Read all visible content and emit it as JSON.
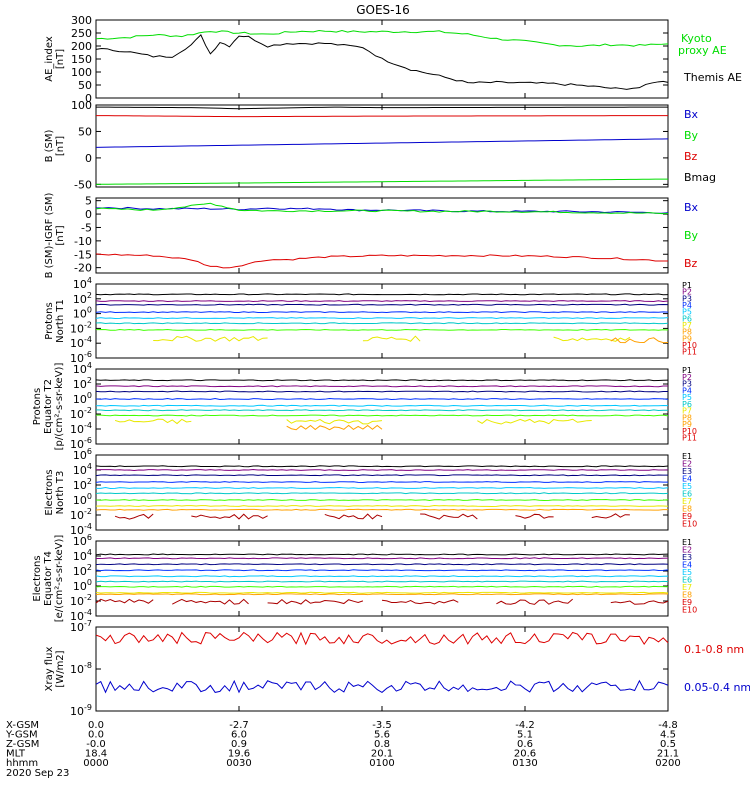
{
  "title": "GOES-16",
  "colors": {
    "black": "#000000",
    "green": "#00dd00",
    "red": "#dd0000",
    "blue": "#0000cc",
    "navy": "#000080",
    "purple": "#800080",
    "royal": "#0030ff",
    "cyan": "#00c8ff",
    "teal": "#00c8c8",
    "lime": "#40ff00",
    "yellow": "#e8e800",
    "orange": "#ffa000",
    "darkred": "#aa0000"
  },
  "chart_data": [
    {
      "type": "line",
      "ylabel": "AE_index [nT]",
      "ylim": [
        0,
        300
      ],
      "yticks": [
        "0",
        "50",
        "100",
        "150",
        "200",
        "250",
        "300"
      ],
      "legend": [
        "Kyoto proxy AE",
        "Themis AE"
      ],
      "series": [
        {
          "name": "Kyoto proxy AE",
          "color": "green",
          "x": [
            0,
            3,
            6,
            9,
            12,
            15,
            18,
            21,
            24,
            27,
            30,
            33,
            36,
            39,
            42,
            45,
            48,
            51,
            54,
            57,
            60
          ],
          "values": [
            228,
            232,
            243,
            238,
            258,
            250,
            245,
            256,
            258,
            255,
            255,
            255,
            255,
            245,
            228,
            218,
            205,
            200,
            205,
            202,
            208
          ]
        },
        {
          "name": "Themis AE",
          "color": "black",
          "x": [
            0,
            3,
            6,
            8,
            10,
            11,
            12,
            13,
            14,
            15,
            16,
            18,
            20,
            24,
            28,
            30,
            33,
            36,
            39,
            42,
            45,
            48,
            51,
            54,
            55,
            57,
            59,
            60
          ],
          "values": [
            190,
            180,
            160,
            160,
            205,
            240,
            170,
            215,
            200,
            240,
            235,
            200,
            210,
            210,
            195,
            150,
            110,
            85,
            58,
            60,
            58,
            55,
            48,
            38,
            35,
            40,
            65,
            60
          ]
        }
      ]
    },
    {
      "type": "line",
      "ylabel": "B (SM) [nT]",
      "ylim": [
        -55,
        100
      ],
      "yticks": [
        "-50",
        "0",
        "50",
        "100"
      ],
      "legend": [
        "Bx",
        "By",
        "Bz",
        "Bmag"
      ],
      "series": [
        {
          "name": "Bx",
          "color": "blue",
          "x": [
            0,
            60
          ],
          "values": [
            20,
            36
          ]
        },
        {
          "name": "By",
          "color": "green",
          "x": [
            0,
            60
          ],
          "values": [
            -50,
            -40
          ]
        },
        {
          "name": "Bz",
          "color": "red",
          "x": [
            0,
            15,
            30,
            60
          ],
          "values": [
            80,
            78,
            79,
            80
          ]
        },
        {
          "name": "Bmag",
          "color": "black",
          "x": [
            0,
            10,
            15,
            25,
            30,
            60
          ],
          "values": [
            96,
            95,
            93,
            96,
            95,
            96
          ]
        }
      ]
    },
    {
      "type": "line",
      "ylabel": "B (SM)-IGRF (SM) [nT]",
      "ylim": [
        -22,
        6
      ],
      "yticks": [
        "-20",
        "-15",
        "-10",
        "-5",
        "0",
        "5"
      ],
      "legend": [
        "Bx",
        "By",
        "Bz"
      ],
      "series": [
        {
          "name": "Bx",
          "color": "blue",
          "x": [
            0,
            6,
            12,
            15,
            18,
            21,
            24,
            27,
            30,
            36,
            42,
            48,
            54,
            60
          ],
          "values": [
            2.5,
            2,
            2,
            1.8,
            2.2,
            2,
            2,
            1.5,
            1.5,
            1.2,
            1,
            1,
            0.8,
            0.5
          ]
        },
        {
          "name": "By",
          "color": "green",
          "x": [
            0,
            6,
            10,
            12,
            15,
            18,
            24,
            30,
            36,
            42,
            48,
            54,
            60
          ],
          "values": [
            2,
            1.5,
            3,
            4,
            1.5,
            1.2,
            1.2,
            1.2,
            1,
            1,
            0.8,
            0.5,
            0.2
          ]
        },
        {
          "name": "Bz",
          "color": "red",
          "x": [
            0,
            6,
            10,
            12,
            14,
            16,
            18,
            20,
            24,
            30,
            36,
            42,
            48,
            54,
            60
          ],
          "values": [
            -15,
            -15.5,
            -17,
            -19.5,
            -20,
            -18.5,
            -17,
            -17,
            -16,
            -15.5,
            -15.5,
            -15.5,
            -15.8,
            -16.5,
            -17.5
          ]
        }
      ]
    },
    {
      "type": "line",
      "ylabel": "Protons North T1",
      "ylog": [
        -6,
        4
      ],
      "yticks": [
        "10^4",
        "10^2",
        "10^0",
        "10^-2",
        "10^-4",
        "10^-6"
      ],
      "legend": [
        "P1",
        "P2",
        "P3",
        "P4",
        "P5",
        "P6",
        "P7",
        "P8",
        "P9",
        "P10",
        "P11"
      ],
      "series": [
        {
          "name": "P1",
          "color": "black",
          "log": 2.6
        },
        {
          "name": "P2",
          "color": "purple",
          "log": 1.7
        },
        {
          "name": "P3",
          "color": "navy",
          "log": 1.2
        },
        {
          "name": "P4",
          "color": "royal",
          "log": 0.2
        },
        {
          "name": "P5",
          "color": "cyan",
          "log": -0.6
        },
        {
          "name": "P6",
          "color": "teal",
          "log": -1.3
        },
        {
          "name": "P7",
          "color": "lime",
          "log": -2.2
        },
        {
          "name": "P8",
          "color": "yellow",
          "log": -3.4,
          "segments": [
            [
              6,
              18
            ],
            [
              28,
              34
            ],
            [
              48,
              56
            ]
          ]
        },
        {
          "name": "P9",
          "color": "orange",
          "log": -3.6,
          "segments": [
            [
              54,
              60
            ]
          ]
        }
      ]
    },
    {
      "type": "line",
      "ylabel": "Protons Equator T2 [p/(cm²-s-sr-keV)]",
      "ylog": [
        -6,
        4
      ],
      "yticks": [
        "10^4",
        "10^2",
        "10^0",
        "10^-2",
        "10^-4",
        "10^-6"
      ],
      "legend": [
        "P1",
        "P2",
        "P3",
        "P4",
        "P5",
        "P6",
        "P7",
        "P8",
        "P9",
        "P10",
        "P11"
      ],
      "series": [
        {
          "name": "P1",
          "color": "black",
          "log": 2.5
        },
        {
          "name": "P2",
          "color": "purple",
          "log": 1.7
        },
        {
          "name": "P3",
          "color": "navy",
          "log": 1.0
        },
        {
          "name": "P4",
          "color": "royal",
          "log": 0.0
        },
        {
          "name": "P5",
          "color": "cyan",
          "log": -0.9
        },
        {
          "name": "P6",
          "color": "teal",
          "log": -1.5
        },
        {
          "name": "P7",
          "color": "lime",
          "log": -2.2
        },
        {
          "name": "P8",
          "color": "yellow",
          "log": -3.0,
          "segments": [
            [
              2,
              10
            ],
            [
              20,
              30
            ],
            [
              40,
              52
            ]
          ]
        },
        {
          "name": "P9",
          "color": "orange",
          "log": -3.8,
          "segments": [
            [
              20,
              30
            ]
          ]
        }
      ]
    },
    {
      "type": "line",
      "ylabel": "Electrons North T3",
      "ylog": [
        -4,
        6
      ],
      "yticks": [
        "10^6",
        "10^4",
        "10^2",
        "10^0",
        "10^-2",
        "10^-4"
      ],
      "legend": [
        "E1",
        "E2",
        "E3",
        "E4",
        "E5",
        "E6",
        "E7",
        "E8",
        "E9",
        "E10"
      ],
      "series": [
        {
          "name": "E1",
          "color": "black",
          "log": 4.5
        },
        {
          "name": "E2",
          "color": "purple",
          "log": 4.0
        },
        {
          "name": "E3",
          "color": "navy",
          "log": 3.3
        },
        {
          "name": "E4",
          "color": "royal",
          "log": 2.4
        },
        {
          "name": "E5",
          "color": "cyan",
          "log": 1.6
        },
        {
          "name": "E6",
          "color": "teal",
          "log": 0.9
        },
        {
          "name": "E7",
          "color": "lime",
          "log": 0.0
        },
        {
          "name": "E8",
          "color": "yellow",
          "log": -0.8
        },
        {
          "name": "E9",
          "color": "orange",
          "log": -1.3
        },
        {
          "name": "E10",
          "color": "darkred",
          "log": -2.2,
          "segments": [
            [
              2,
              6
            ],
            [
              10,
              18
            ],
            [
              24,
              30
            ],
            [
              34,
              40
            ],
            [
              44,
              48
            ],
            [
              52,
              56
            ]
          ]
        }
      ]
    },
    {
      "type": "line",
      "ylabel": "Electrons Equator T4 [e/(cm²-s-sr-keV)]",
      "ylog": [
        -4,
        6
      ],
      "yticks": [
        "10^6",
        "10^4",
        "10^2",
        "10^0",
        "10^-2",
        "10^-4"
      ],
      "legend": [
        "E1",
        "E2",
        "E3",
        "E4",
        "E5",
        "E6",
        "E7",
        "E8",
        "E9",
        "E10"
      ],
      "series": [
        {
          "name": "E1",
          "color": "black",
          "log": 4.2
        },
        {
          "name": "E2",
          "color": "purple",
          "log": 3.7
        },
        {
          "name": "E3",
          "color": "navy",
          "log": 2.9
        },
        {
          "name": "E4",
          "color": "royal",
          "log": 2.1
        },
        {
          "name": "E5",
          "color": "cyan",
          "log": 1.3
        },
        {
          "name": "E6",
          "color": "teal",
          "log": 0.6
        },
        {
          "name": "E7",
          "color": "lime",
          "log": -0.1
        },
        {
          "name": "E8",
          "color": "yellow",
          "log": -0.9
        },
        {
          "name": "E9",
          "color": "orange",
          "log": -1.1
        },
        {
          "name": "E10",
          "color": "darkred",
          "log": -2.1,
          "segments": [
            [
              0,
              6
            ],
            [
              8,
              16
            ],
            [
              18,
              28
            ],
            [
              30,
              38
            ],
            [
              42,
              50
            ],
            [
              54,
              60
            ]
          ]
        }
      ]
    },
    {
      "type": "line",
      "ylabel": "Xray flux [W/m2]",
      "ylog": [
        -9,
        -7
      ],
      "yticks": [
        "10^-7",
        "10^-8",
        "10^-9"
      ],
      "legend": [
        "0.1-0.8 nm",
        "0.05-0.4 nm"
      ],
      "series": [
        {
          "name": "0.1-0.8 nm",
          "color": "red",
          "log": -7.27
        },
        {
          "name": "0.05-0.4 nm",
          "color": "blue",
          "log": -8.42
        }
      ]
    }
  ],
  "xaxis": {
    "rows": [
      {
        "label": "X-GSM",
        "values": [
          "0.0",
          "-2.7",
          "-3.5",
          "-4.2",
          "-4.8"
        ]
      },
      {
        "label": "Y-GSM",
        "values": [
          "0.0",
          "6.0",
          "5.6",
          "5.1",
          "4.5"
        ]
      },
      {
        "label": "Z-GSM",
        "values": [
          "-0.0",
          "0.9",
          "0.8",
          "0.6",
          "0.5"
        ]
      },
      {
        "label": "MLT",
        "values": [
          "18.4",
          "19.6",
          "20.1",
          "20.6",
          "21.1"
        ]
      },
      {
        "label": "hhmm",
        "values": [
          "0000",
          "0030",
          "0100",
          "0130",
          "0200"
        ]
      }
    ],
    "date": "2020 Sep 23"
  }
}
